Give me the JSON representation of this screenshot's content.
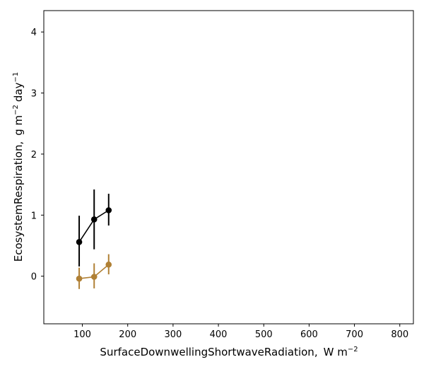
{
  "chart_data": {
    "type": "line",
    "title": "",
    "xlabel": "SurfaceDownwellingShortwaveRadiation,",
    "xunit_base": "W m",
    "xunit_exp": "−2",
    "ylabel": "EcosystemRespiration,",
    "yunit_g": "g m",
    "yunit_exp1": "−2",
    "yunit_day": "day",
    "yunit_exp2": "−1",
    "xlim": [
      15,
      830
    ],
    "ylim": [
      -0.78,
      4.35
    ],
    "xticks": [
      100,
      200,
      300,
      400,
      500,
      600,
      700,
      800
    ],
    "yticks": [
      0,
      1,
      2,
      3,
      4
    ],
    "grid": false,
    "series": [
      {
        "color": "#000000",
        "x": [
          93,
          126,
          158
        ],
        "y": [
          0.56,
          0.93,
          1.08
        ],
        "yerr_low": [
          0.16,
          0.44,
          0.83
        ],
        "yerr_high": [
          0.99,
          1.42,
          1.35
        ]
      },
      {
        "color": "#b08035",
        "x": [
          93,
          126,
          158
        ],
        "y": [
          -0.04,
          -0.01,
          0.19
        ],
        "yerr_low": [
          -0.21,
          -0.2,
          0.03
        ],
        "yerr_high": [
          0.14,
          0.21,
          0.36
        ]
      }
    ]
  }
}
